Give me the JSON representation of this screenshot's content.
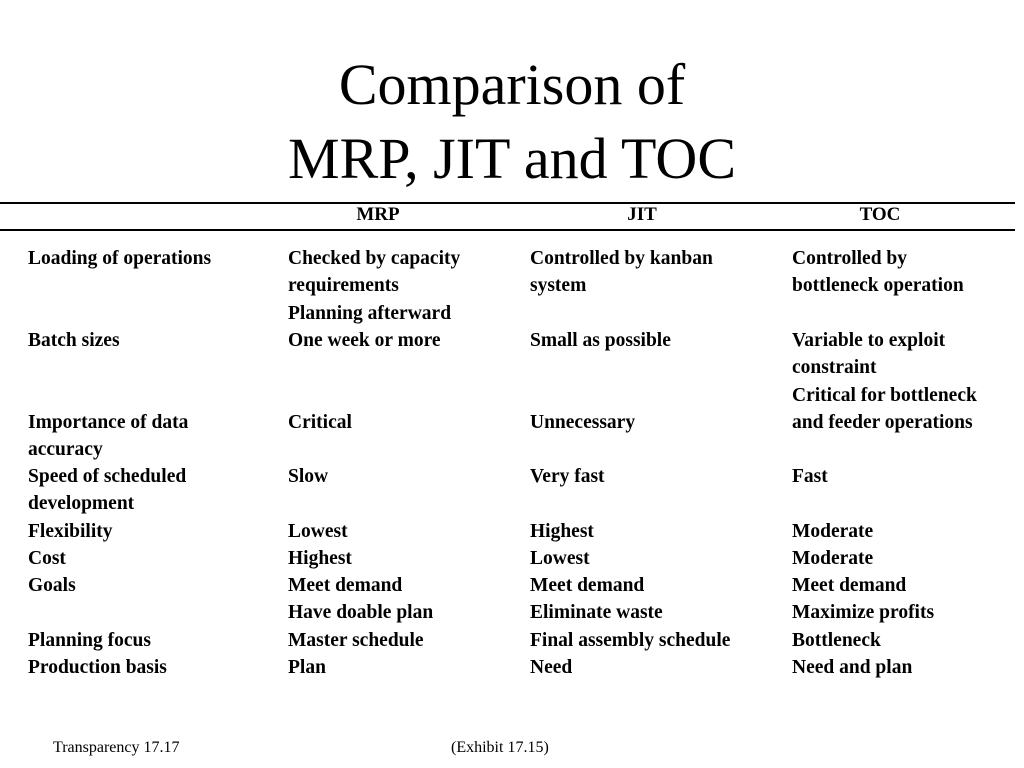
{
  "title": {
    "line1": "Comparison of",
    "line2": "MRP, JIT and TOC"
  },
  "headers": [
    "MRP",
    "JIT",
    "TOC"
  ],
  "rows": {
    "loading": {
      "label": [
        "Loading of operations"
      ],
      "mrp": [
        "Checked by capacity",
        "requirements",
        "Planning afterward"
      ],
      "jit": [
        "Controlled by kanban",
        "system"
      ],
      "toc": [
        "Controlled by",
        "bottleneck operation"
      ]
    },
    "batch": {
      "label": [
        "Batch sizes"
      ],
      "mrp": [
        "One week or more"
      ],
      "jit": [
        "Small as possible"
      ],
      "toc": [
        "Variable to exploit",
        "constraint"
      ]
    },
    "accuracy": {
      "label": [
        "Importance of data",
        "accuracy"
      ],
      "mrp": [
        "Critical"
      ],
      "jit": [
        "Unnecessary"
      ],
      "toc": [
        "Critical for bottleneck",
        "and feeder operations"
      ]
    },
    "speed": {
      "label": [
        "Speed of scheduled",
        "development"
      ],
      "mrp": [
        "Slow"
      ],
      "jit": [
        "Very fast"
      ],
      "toc": [
        "Fast"
      ]
    },
    "flexibility": {
      "label": [
        "Flexibility"
      ],
      "mrp": [
        "Lowest"
      ],
      "jit": [
        "Highest"
      ],
      "toc": [
        "Moderate"
      ]
    },
    "cost": {
      "label": [
        "Cost"
      ],
      "mrp": [
        "Highest"
      ],
      "jit": [
        "Lowest"
      ],
      "toc": [
        "Moderate"
      ]
    },
    "goals": {
      "label": [
        "Goals"
      ],
      "mrp": [
        "Meet demand",
        "Have doable plan"
      ],
      "jit": [
        "Meet demand",
        "Eliminate waste"
      ],
      "toc": [
        "Meet demand",
        "Maximize profits"
      ]
    },
    "focus": {
      "label": [
        "Planning focus"
      ],
      "mrp": [
        "Master schedule"
      ],
      "jit": [
        "Final assembly schedule"
      ],
      "toc": [
        "Bottleneck"
      ]
    },
    "basis": {
      "label": [
        "Production basis"
      ],
      "mrp": [
        "Plan"
      ],
      "jit": [
        "Need"
      ],
      "toc": [
        "Need and plan"
      ]
    }
  },
  "footer": {
    "left": "Transparency 17.17",
    "right": "(Exhibit 17.15)"
  }
}
